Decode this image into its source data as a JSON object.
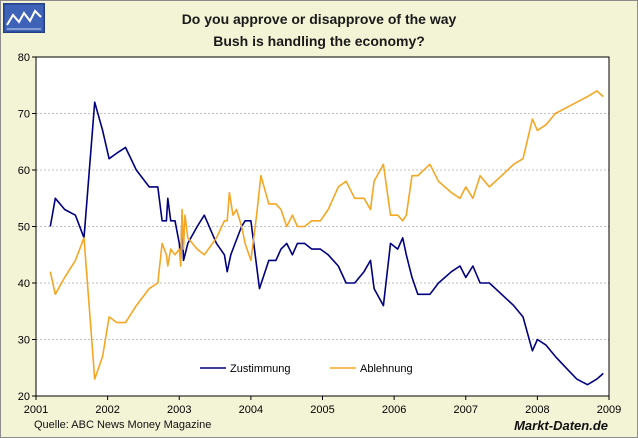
{
  "title_line1": "Do you approve or disapprove of the way",
  "title_line2": "Bush is handling the economy?",
  "source": "Quelle: ABC News Money Magazine",
  "brand": "Markt-Daten.de",
  "logo_icon": "line-chart-logo-icon",
  "colors": {
    "background": "#f3f3d6",
    "plot_background": "#ffffff",
    "grid": "#c0c0c0",
    "approve": "#000080",
    "disapprove": "#f5a623",
    "logo_bg": "#2f4f9e"
  },
  "chart_data": {
    "type": "line",
    "title": "Do you approve or disapprove of the way Bush is handling the economy?",
    "xlabel": "",
    "ylabel": "",
    "xlim": [
      2001.0,
      2009.0
    ],
    "ylim": [
      20,
      80
    ],
    "x_ticks": [
      "2001",
      "2002",
      "2003",
      "2004",
      "2005",
      "2006",
      "2007",
      "2008",
      "2009"
    ],
    "y_ticks": [
      "20",
      "30",
      "40",
      "50",
      "60",
      "70",
      "80"
    ],
    "grid": true,
    "legend_position": "bottom-center",
    "series": [
      {
        "name": "Zustimmung",
        "color": "#000080",
        "points": [
          [
            2001.2,
            50
          ],
          [
            2001.27,
            55
          ],
          [
            2001.4,
            53
          ],
          [
            2001.55,
            52
          ],
          [
            2001.67,
            48
          ],
          [
            2001.82,
            72
          ],
          [
            2001.93,
            67
          ],
          [
            2002.02,
            62
          ],
          [
            2002.13,
            63
          ],
          [
            2002.25,
            64
          ],
          [
            2002.4,
            60
          ],
          [
            2002.58,
            57
          ],
          [
            2002.7,
            57
          ],
          [
            2002.76,
            51
          ],
          [
            2002.82,
            51
          ],
          [
            2002.84,
            55
          ],
          [
            2002.88,
            51
          ],
          [
            2002.94,
            51
          ],
          [
            2003.0,
            47
          ],
          [
            2003.02,
            44
          ],
          [
            2003.04,
            52
          ],
          [
            2003.06,
            44
          ],
          [
            2003.08,
            45
          ],
          [
            2003.12,
            47
          ],
          [
            2003.25,
            50
          ],
          [
            2003.35,
            52
          ],
          [
            2003.52,
            47
          ],
          [
            2003.63,
            45
          ],
          [
            2003.67,
            42
          ],
          [
            2003.72,
            45
          ],
          [
            2003.78,
            47
          ],
          [
            2003.87,
            50
          ],
          [
            2003.92,
            51
          ],
          [
            2004.0,
            51
          ],
          [
            2004.08,
            43
          ],
          [
            2004.12,
            39
          ],
          [
            2004.25,
            44
          ],
          [
            2004.35,
            44
          ],
          [
            2004.42,
            46
          ],
          [
            2004.5,
            47
          ],
          [
            2004.58,
            45
          ],
          [
            2004.65,
            47
          ],
          [
            2004.75,
            47
          ],
          [
            2004.85,
            46
          ],
          [
            2004.97,
            46
          ],
          [
            2005.08,
            45
          ],
          [
            2005.22,
            43
          ],
          [
            2005.33,
            40
          ],
          [
            2005.45,
            40
          ],
          [
            2005.58,
            42
          ],
          [
            2005.67,
            44
          ],
          [
            2005.72,
            39
          ],
          [
            2005.85,
            36
          ],
          [
            2005.95,
            47
          ],
          [
            2006.05,
            46
          ],
          [
            2006.12,
            48
          ],
          [
            2006.17,
            45
          ],
          [
            2006.25,
            41
          ],
          [
            2006.33,
            38
          ],
          [
            2006.5,
            38
          ],
          [
            2006.62,
            40
          ],
          [
            2006.8,
            42
          ],
          [
            2006.92,
            43
          ],
          [
            2007.0,
            41
          ],
          [
            2007.1,
            43
          ],
          [
            2007.2,
            40
          ],
          [
            2007.33,
            40
          ],
          [
            2007.5,
            38
          ],
          [
            2007.67,
            36
          ],
          [
            2007.8,
            34
          ],
          [
            2007.93,
            28
          ],
          [
            2008.0,
            30
          ],
          [
            2008.12,
            29
          ],
          [
            2008.25,
            27
          ],
          [
            2008.4,
            25
          ],
          [
            2008.55,
            23
          ],
          [
            2008.7,
            22
          ],
          [
            2008.83,
            23
          ],
          [
            2008.92,
            24
          ]
        ]
      },
      {
        "name": "Ablehnung",
        "color": "#f5a623",
        "points": [
          [
            2001.2,
            42
          ],
          [
            2001.27,
            38
          ],
          [
            2001.4,
            41
          ],
          [
            2001.55,
            44
          ],
          [
            2001.67,
            48
          ],
          [
            2001.82,
            23
          ],
          [
            2001.93,
            27
          ],
          [
            2002.02,
            34
          ],
          [
            2002.13,
            33
          ],
          [
            2002.25,
            33
          ],
          [
            2002.4,
            36
          ],
          [
            2002.58,
            39
          ],
          [
            2002.7,
            40
          ],
          [
            2002.76,
            47
          ],
          [
            2002.82,
            45
          ],
          [
            2002.84,
            43
          ],
          [
            2002.88,
            46
          ],
          [
            2002.94,
            45
          ],
          [
            2003.0,
            46
          ],
          [
            2003.02,
            43
          ],
          [
            2003.04,
            53
          ],
          [
            2003.06,
            46
          ],
          [
            2003.08,
            52
          ],
          [
            2003.12,
            48
          ],
          [
            2003.25,
            46
          ],
          [
            2003.35,
            45
          ],
          [
            2003.52,
            48
          ],
          [
            2003.63,
            51
          ],
          [
            2003.67,
            51
          ],
          [
            2003.7,
            56
          ],
          [
            2003.75,
            52
          ],
          [
            2003.8,
            53
          ],
          [
            2003.87,
            50
          ],
          [
            2003.92,
            47
          ],
          [
            2004.0,
            44
          ],
          [
            2004.08,
            52
          ],
          [
            2004.14,
            59
          ],
          [
            2004.25,
            54
          ],
          [
            2004.35,
            54
          ],
          [
            2004.42,
            53
          ],
          [
            2004.5,
            50
          ],
          [
            2004.58,
            52
          ],
          [
            2004.65,
            50
          ],
          [
            2004.75,
            50
          ],
          [
            2004.85,
            51
          ],
          [
            2004.97,
            51
          ],
          [
            2005.08,
            53
          ],
          [
            2005.22,
            57
          ],
          [
            2005.33,
            58
          ],
          [
            2005.45,
            55
          ],
          [
            2005.58,
            55
          ],
          [
            2005.67,
            53
          ],
          [
            2005.72,
            58
          ],
          [
            2005.85,
            61
          ],
          [
            2005.95,
            52
          ],
          [
            2006.05,
            52
          ],
          [
            2006.12,
            51
          ],
          [
            2006.17,
            52
          ],
          [
            2006.25,
            59
          ],
          [
            2006.33,
            59
          ],
          [
            2006.5,
            61
          ],
          [
            2006.62,
            58
          ],
          [
            2006.8,
            56
          ],
          [
            2006.92,
            55
          ],
          [
            2007.0,
            57
          ],
          [
            2007.1,
            55
          ],
          [
            2007.2,
            59
          ],
          [
            2007.33,
            57
          ],
          [
            2007.5,
            59
          ],
          [
            2007.67,
            61
          ],
          [
            2007.8,
            62
          ],
          [
            2007.93,
            69
          ],
          [
            2008.0,
            67
          ],
          [
            2008.12,
            68
          ],
          [
            2008.25,
            70
          ],
          [
            2008.4,
            71
          ],
          [
            2008.55,
            72
          ],
          [
            2008.7,
            73
          ],
          [
            2008.83,
            74
          ],
          [
            2008.92,
            73
          ]
        ]
      }
    ]
  }
}
